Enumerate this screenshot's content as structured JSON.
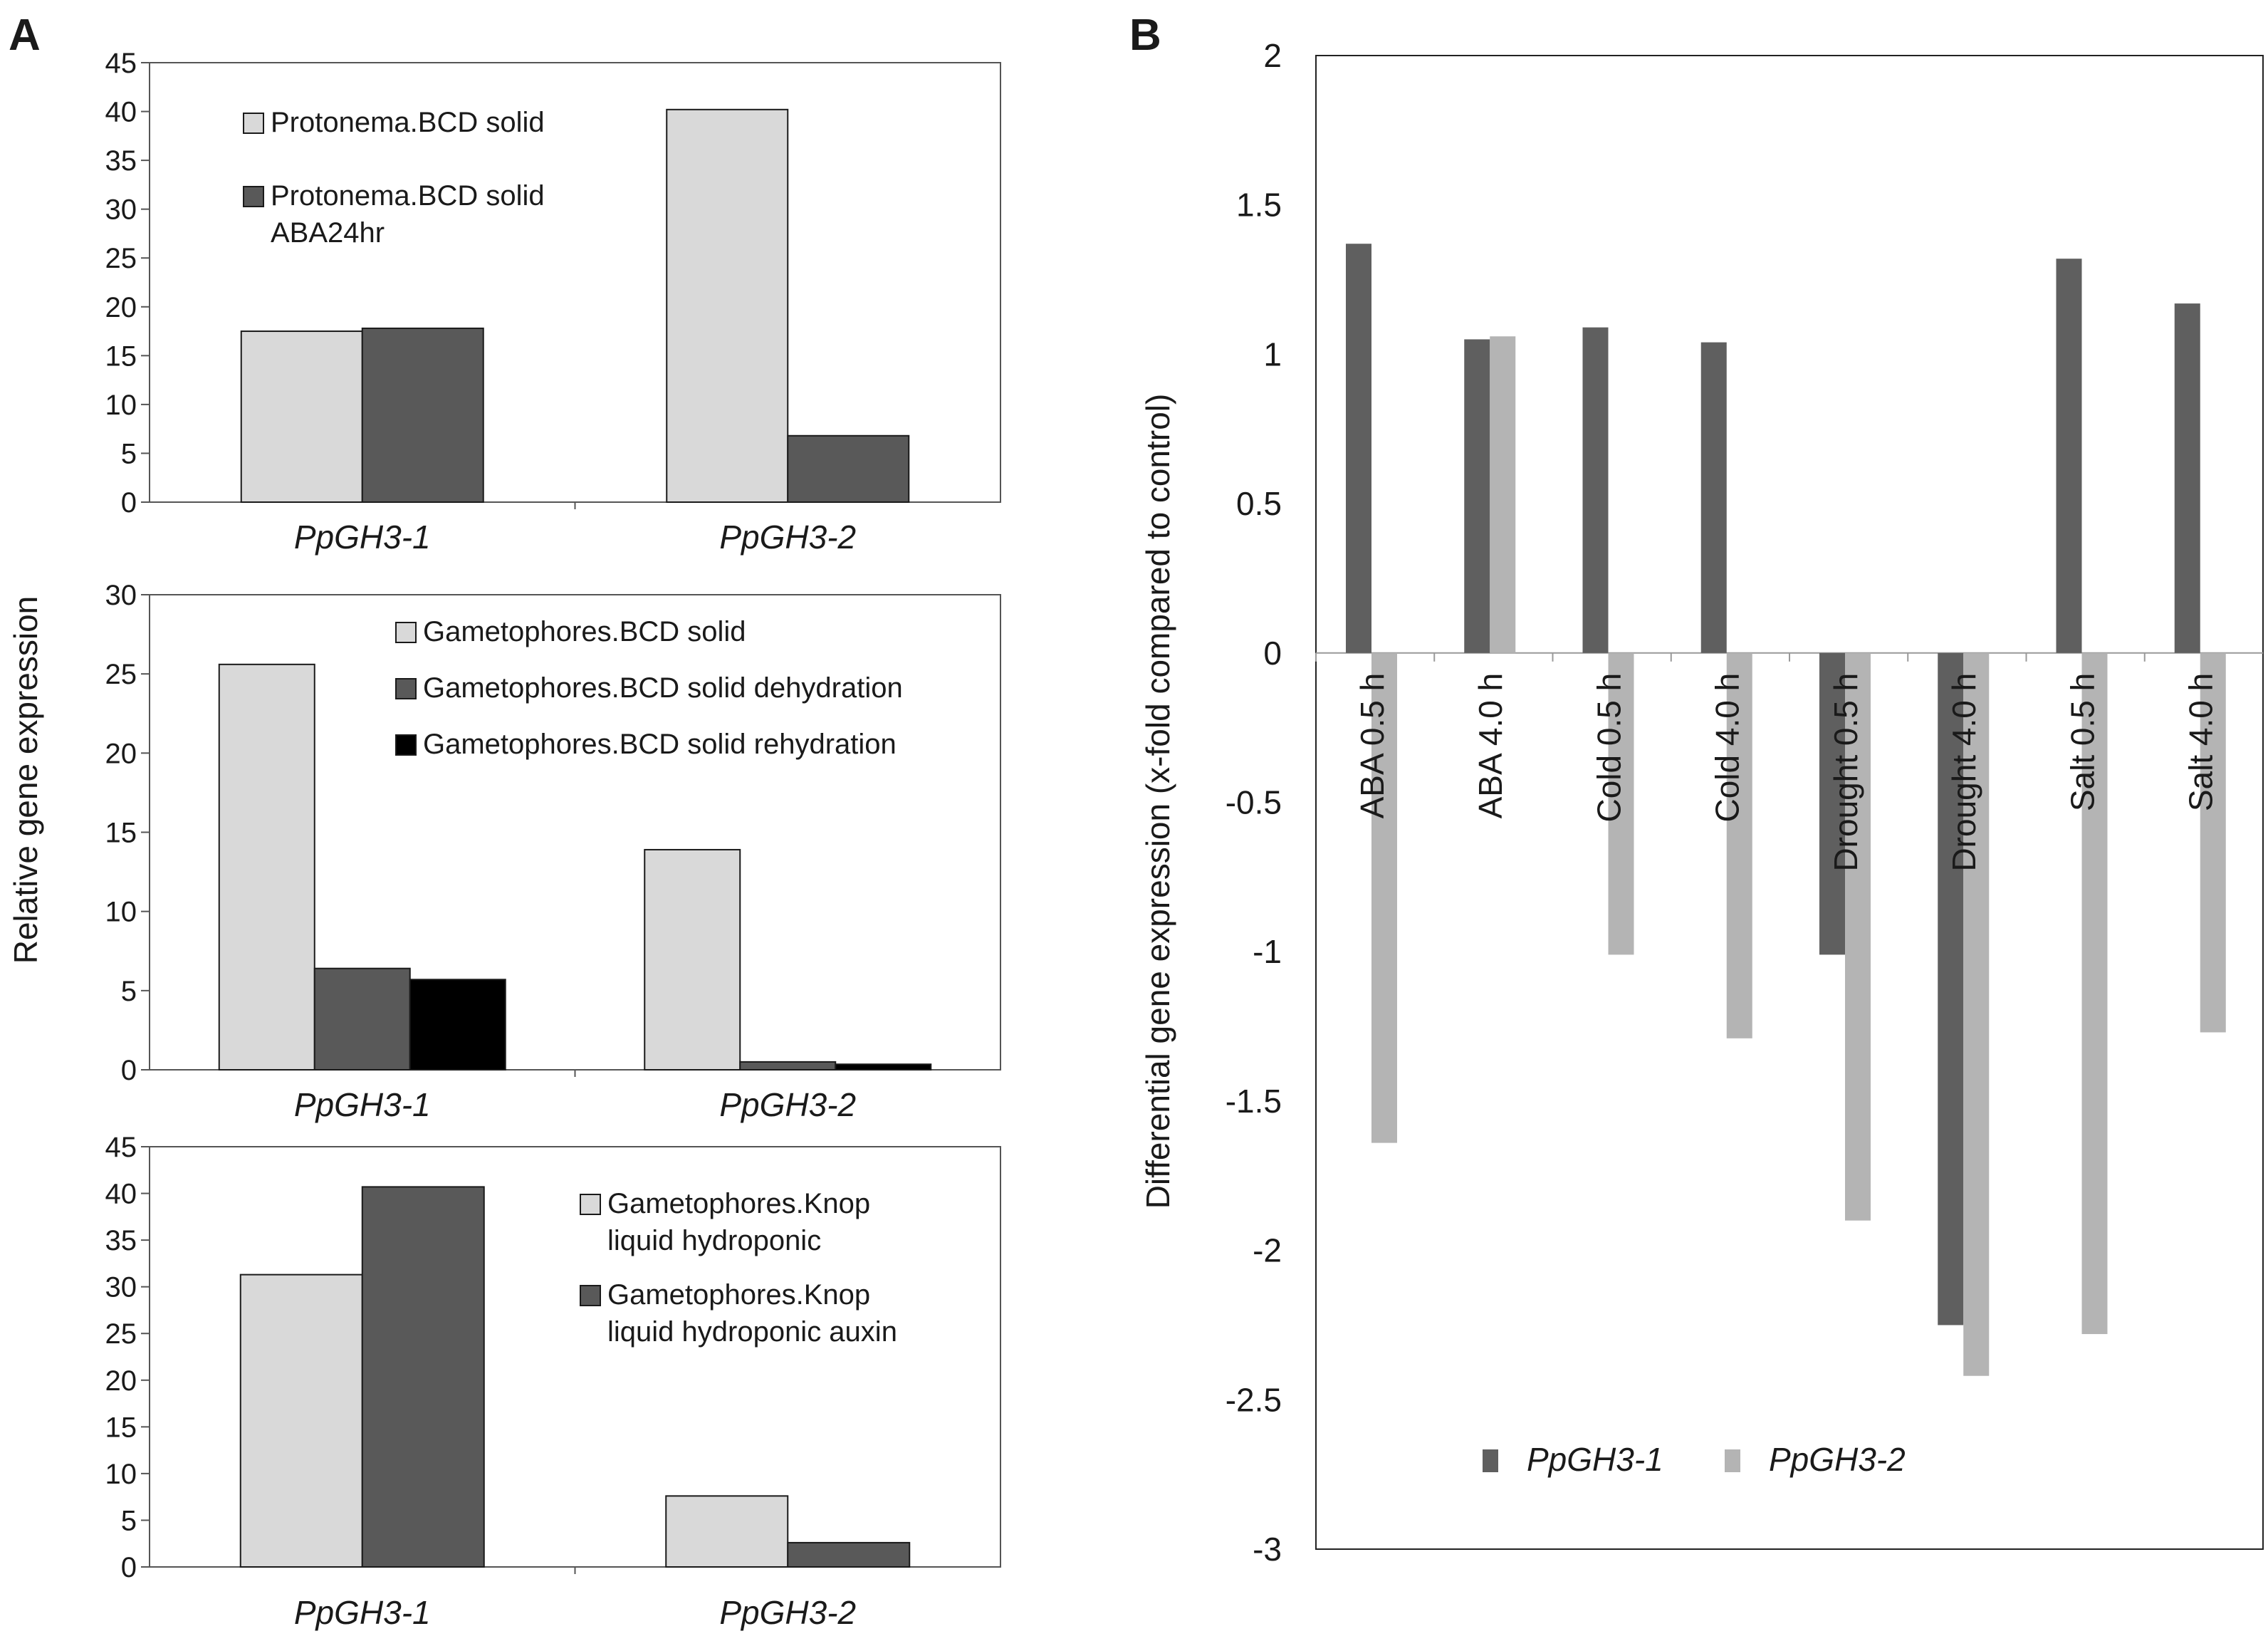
{
  "panel_labels": {
    "a": "A",
    "b": "B"
  },
  "colors": {
    "light": "#d9d9d9",
    "dark": "#595959",
    "black": "#000000",
    "b_gh31": "#5f5f5f",
    "b_gh32": "#b4b4b4"
  },
  "chart_data": [
    {
      "id": "A1",
      "type": "bar",
      "title": "",
      "ylabel": "Relative gene expression",
      "ylim": [
        0,
        45
      ],
      "yticks": [
        "0",
        "5",
        "10",
        "15",
        "20",
        "25",
        "30",
        "35",
        "40",
        "45"
      ],
      "categories": [
        "PpGH3-1",
        "PpGH3-2"
      ],
      "series": [
        {
          "name": "Protonema.BCD solid",
          "legend_lines": [
            "Protonema.BCD solid"
          ],
          "color": "#d9d9d9",
          "values": [
            17.5,
            40.2
          ]
        },
        {
          "name": "Protonema.BCD solid ABA24hr",
          "legend_lines": [
            "Protonema.BCD solid",
            "ABA24hr"
          ],
          "color": "#595959",
          "values": [
            17.8,
            6.8
          ]
        }
      ]
    },
    {
      "id": "A2",
      "type": "bar",
      "ylim": [
        0,
        30
      ],
      "yticks": [
        "0",
        "5",
        "10",
        "15",
        "20",
        "25",
        "30"
      ],
      "categories": [
        "PpGH3-1",
        "PpGH3-2"
      ],
      "series": [
        {
          "name": "Gametophores.BCD solid",
          "legend_lines": [
            "Gametophores.BCD solid"
          ],
          "color": "#d9d9d9",
          "values": [
            25.6,
            13.9
          ]
        },
        {
          "name": "Gametophores.BCD solid dehydration",
          "legend_lines": [
            "Gametophores.BCD solid dehydration"
          ],
          "color": "#595959",
          "values": [
            6.4,
            0.5
          ]
        },
        {
          "name": "Gametophores.BCD solid rehydration",
          "legend_lines": [
            "Gametophores.BCD solid rehydration"
          ],
          "color": "#000000",
          "values": [
            5.7,
            0.35
          ]
        }
      ]
    },
    {
      "id": "A3",
      "type": "bar",
      "ylim": [
        0,
        45
      ],
      "yticks": [
        "0",
        "5",
        "10",
        "15",
        "20",
        "25",
        "30",
        "35",
        "40",
        "45"
      ],
      "categories": [
        "PpGH3-1",
        "PpGH3-2"
      ],
      "series": [
        {
          "name": "Gametophores.Knop liquid hydroponic",
          "legend_lines": [
            "Gametophores.Knop",
            "liquid hydroponic"
          ],
          "color": "#d9d9d9",
          "values": [
            31.3,
            7.6
          ]
        },
        {
          "name": "Gametophores.Knop liquid hydroponic auxin",
          "legend_lines": [
            "Gametophores.Knop",
            "liquid hydroponic auxin"
          ],
          "color": "#595959",
          "values": [
            40.7,
            2.6
          ]
        }
      ]
    },
    {
      "id": "B",
      "type": "bar",
      "ylabel": "Differential gene expression (x-fold compared to control)",
      "ylim": [
        -3,
        2
      ],
      "yticks": [
        "-3",
        "-2.5",
        "-2",
        "-1.5",
        "-1",
        "-0.5",
        "0",
        "0.5",
        "1",
        "1.5",
        "2"
      ],
      "categories": [
        "ABA 0.5 h",
        "ABA 4.0 h",
        "Cold 0.5 h",
        "Cold 4.0 h",
        "Drought 0.5 h",
        "Drought 4.0 h",
        "Salt 0.5 h",
        "Salt 4.0 h"
      ],
      "series": [
        {
          "name": "PpGH3-1",
          "color": "#5f5f5f",
          "values": [
            1.37,
            1.05,
            1.09,
            1.04,
            -1.01,
            -2.25,
            1.32,
            1.17
          ]
        },
        {
          "name": "PpGH3-2",
          "color": "#b4b4b4",
          "values": [
            -1.64,
            1.06,
            -1.01,
            -1.29,
            -1.9,
            -2.42,
            -2.28,
            -1.27
          ]
        }
      ],
      "legend_position": "bottom-center"
    }
  ]
}
